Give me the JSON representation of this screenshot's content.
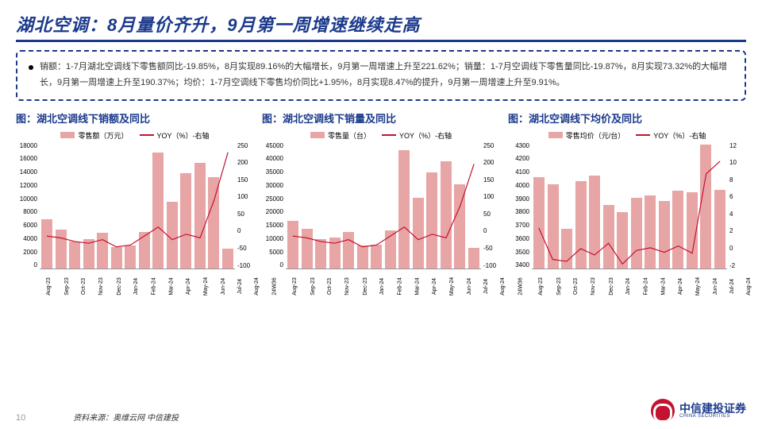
{
  "title": "湖北空调：8月量价齐升，9月第一周增速继续走高",
  "info_text": "销额：1-7月湖北空调线下零售额同比-19.85%，8月实现89.16%的大幅增长，9月第一周增速上升至221.62%；销量：1-7月空调线下零售量同比-19.87%，8月实现73.32%的大幅增长，9月第一周增速上升至190.37%；均价：1-7月空调线下零售均价同比+1.95%，8月实现8.47%的提升，9月第一周增速上升至9.91%。",
  "charts": [
    {
      "title": "图：湖北空调线下销额及同比",
      "legend_bar": "零售额（万元）",
      "legend_line": "YOY（%）-右轴",
      "bar_color": "#e8a5a5",
      "line_color": "#c41230",
      "y_left": {
        "min": 0,
        "max": 18000,
        "ticks": [
          "18000",
          "16000",
          "14000",
          "12000",
          "10000",
          "8000",
          "6000",
          "4000",
          "2000",
          "0"
        ]
      },
      "y_right": {
        "min": -100,
        "max": 250,
        "ticks": [
          "250",
          "200",
          "150",
          "100",
          "50",
          "0",
          "-50",
          "-100"
        ]
      },
      "x_labels": [
        "Aug-23",
        "Sep-23",
        "Oct-23",
        "Nov-23",
        "Dec-23",
        "Jan-24",
        "Feb-24",
        "Mar-24",
        "Apr-24",
        "May-24",
        "Jun-24",
        "Jul-24",
        "Aug-24",
        "24W36"
      ],
      "bar_values": [
        7000,
        5500,
        3800,
        4200,
        5000,
        3000,
        3200,
        5200,
        16500,
        9500,
        13500,
        15000,
        13000,
        2800
      ],
      "line_values": [
        -10,
        -15,
        -25,
        -30,
        -20,
        -40,
        -35,
        -10,
        15,
        -20,
        -5,
        -15,
        89,
        222
      ]
    },
    {
      "title": "图：湖北空调线下销量及同比",
      "legend_bar": "零售量（台）",
      "legend_line": "YOY（%）-右轴",
      "bar_color": "#e8a5a5",
      "line_color": "#c41230",
      "y_left": {
        "min": 0,
        "max": 45000,
        "ticks": [
          "45000",
          "40000",
          "35000",
          "30000",
          "25000",
          "20000",
          "15000",
          "10000",
          "5000",
          "0"
        ]
      },
      "y_right": {
        "min": -100,
        "max": 250,
        "ticks": [
          "250",
          "200",
          "150",
          "100",
          "50",
          "0",
          "-50",
          "-100"
        ]
      },
      "x_labels": [
        "Aug-23",
        "Sep-23",
        "Oct-23",
        "Nov-23",
        "Dec-23",
        "Jan-24",
        "Feb-24",
        "Mar-24",
        "Apr-24",
        "May-24",
        "Jun-24",
        "Jul-24",
        "Aug-24",
        "24W36"
      ],
      "bar_values": [
        17000,
        14000,
        10500,
        11000,
        13000,
        8000,
        8500,
        13500,
        42000,
        25000,
        34000,
        38000,
        30000,
        7200
      ],
      "line_values": [
        -10,
        -15,
        -25,
        -30,
        -20,
        -40,
        -35,
        -10,
        15,
        -20,
        -5,
        -15,
        73,
        190
      ]
    },
    {
      "title": "图：湖北空调线下均价及同比",
      "legend_bar": "零售均价（元/台）",
      "legend_line": "YOY（%）-右轴",
      "bar_color": "#e8a5a5",
      "line_color": "#c41230",
      "y_left": {
        "min": 3400,
        "max": 4300,
        "ticks": [
          "4300",
          "4200",
          "4100",
          "4000",
          "3900",
          "3800",
          "3700",
          "3600",
          "3500",
          "3400"
        ]
      },
      "y_right": {
        "min": -2,
        "max": 12,
        "ticks": [
          "12",
          "10",
          "8",
          "6",
          "4",
          "2",
          "0",
          "-2"
        ]
      },
      "x_labels": [
        "Aug-23",
        "Sep-23",
        "Oct-23",
        "Nov-23",
        "Dec-23",
        "Jan-24",
        "Feb-24",
        "Mar-24",
        "Apr-24",
        "May-24",
        "Jun-24",
        "Jul-24",
        "Aug-24",
        "24W36"
      ],
      "bar_values": [
        4050,
        4000,
        3680,
        4020,
        4060,
        3850,
        3800,
        3900,
        3920,
        3880,
        3950,
        3940,
        4280,
        3960
      ],
      "line_values": [
        2.5,
        -1,
        -1.2,
        0.2,
        -0.5,
        0.8,
        -1.5,
        0,
        0.3,
        -0.2,
        0.5,
        -0.3,
        8.5,
        9.9
      ]
    }
  ],
  "source": "资料来源：奥维云网  中信建投",
  "page_num": "10",
  "logo_name": "中信建投证券",
  "logo_sub": "CHINA SECURITIES"
}
